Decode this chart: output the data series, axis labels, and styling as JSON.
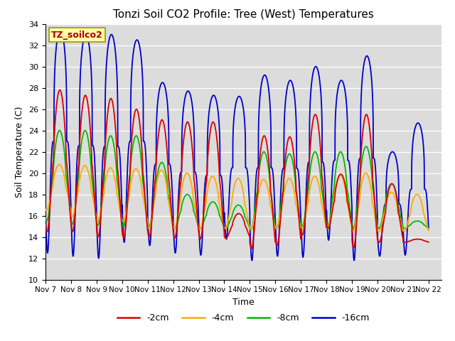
{
  "title": "Tonzi Soil CO2 Profile: Tree (West) Temperatures",
  "xlabel": "Time",
  "ylabel": "Soil Temperature (C)",
  "ylim": [
    10,
    34
  ],
  "xlim_days": 15.5,
  "bg_color": "#dcdcdc",
  "label_box_text": "TZ_soilco2",
  "label_box_bg": "#ffffaa",
  "label_box_fg": "#aa0000",
  "series_colors": [
    "#dd0000",
    "#ffaa00",
    "#00bb00",
    "#0000cc"
  ],
  "series_labels": [
    "-2cm",
    "-4cm",
    "-8cm",
    "-16cm"
  ],
  "xtick_labels": [
    "Nov 7",
    "Nov 8",
    "Nov 9",
    "Nov 10",
    "Nov 11",
    "Nov 12",
    "Nov 13",
    "Nov 14",
    "Nov 15",
    "Nov 16",
    "Nov 17",
    "Nov 18",
    "Nov 19",
    "Nov 20",
    "Nov 21",
    "Nov 22"
  ],
  "ytick_vals": [
    10,
    12,
    14,
    16,
    18,
    20,
    22,
    24,
    26,
    28,
    30,
    32,
    34
  ],
  "pts_per_day": 200,
  "n_days": 15,
  "blue_peaks": [
    33.5,
    33.0,
    33.0,
    32.5,
    28.5,
    27.7,
    27.3,
    27.2,
    29.2,
    28.7,
    30.0,
    28.7,
    31.0,
    22.0,
    24.7
  ],
  "blue_troughs": [
    12.5,
    12.2,
    12.0,
    13.5,
    13.2,
    12.5,
    12.3,
    13.8,
    11.8,
    12.2,
    12.1,
    13.7,
    11.8,
    12.2,
    12.3
  ],
  "red_peaks": [
    27.8,
    27.3,
    27.0,
    26.0,
    25.0,
    24.8,
    24.8,
    16.2,
    23.5,
    23.4,
    25.5,
    19.9,
    25.5,
    19.0,
    13.8
  ],
  "red_troughs": [
    14.5,
    14.5,
    14.0,
    13.9,
    14.0,
    13.9,
    13.8,
    13.9,
    12.9,
    13.2,
    14.2,
    14.8,
    13.0,
    13.5,
    13.5
  ],
  "orange_peaks": [
    20.8,
    20.7,
    20.5,
    20.4,
    20.3,
    20.0,
    19.7,
    19.5,
    19.4,
    19.5,
    19.7,
    19.8,
    20.0,
    18.2,
    18.0
  ],
  "orange_troughs": [
    16.5,
    15.9,
    15.5,
    15.5,
    14.8,
    14.8,
    14.7,
    14.8,
    14.7,
    14.8,
    14.8,
    14.8,
    14.5,
    14.5,
    14.5
  ],
  "green_peaks": [
    24.0,
    24.0,
    23.5,
    23.5,
    21.0,
    18.0,
    17.3,
    17.0,
    22.0,
    21.8,
    22.0,
    22.0,
    22.5,
    19.0,
    15.5
  ],
  "green_troughs": [
    15.5,
    15.2,
    15.1,
    15.0,
    15.0,
    14.8,
    14.8,
    14.8,
    14.7,
    14.8,
    15.0,
    15.0,
    14.8,
    14.8,
    14.8
  ],
  "peak_phase": 0.58,
  "sharpness_blue": 3.5,
  "sharpness_others": 1.5
}
